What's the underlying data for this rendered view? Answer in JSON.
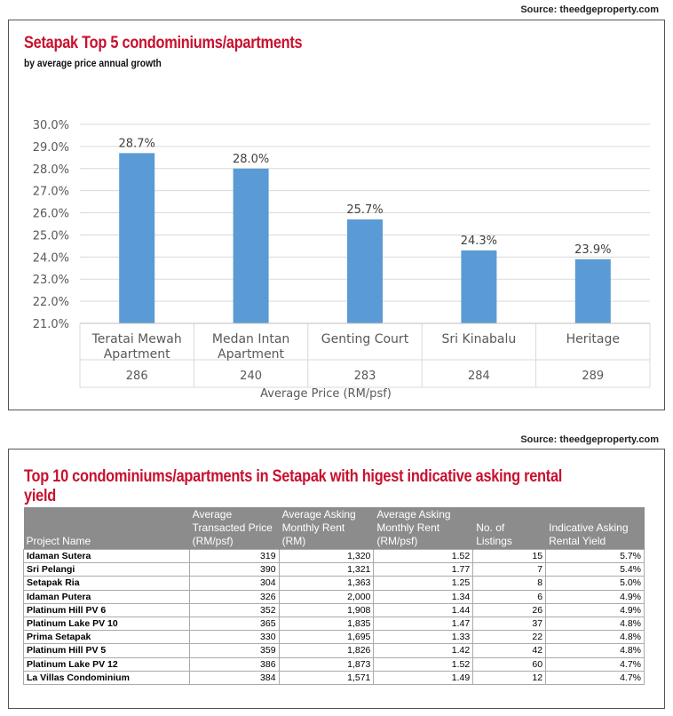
{
  "source_top": "Source: theedgeproperty.com",
  "source_bottom": "Source: theedgeproperty.com",
  "chart_data": {
    "type": "bar",
    "title": "Setapak Top 5 condominiums/apartments",
    "subtitle": "by average price annual growth",
    "categories": [
      {
        "name_lines": [
          "Teratai Mewah",
          "Apartment"
        ],
        "price": "286"
      },
      {
        "name_lines": [
          "Medan Intan",
          "Apartment"
        ],
        "price": "240"
      },
      {
        "name_lines": [
          "Genting Court"
        ],
        "price": "283"
      },
      {
        "name_lines": [
          "Sri Kinabalu"
        ],
        "price": "284"
      },
      {
        "name_lines": [
          "Heritage"
        ],
        "price": "289"
      }
    ],
    "values": [
      28.7,
      28.0,
      25.7,
      24.3,
      23.9
    ],
    "value_labels": [
      "28.7%",
      "28.0%",
      "25.7%",
      "24.3%",
      "23.9%"
    ],
    "xlabel": "Average Price (RM/psf)",
    "ylabel": "",
    "ylim": [
      21.0,
      30.0
    ],
    "yticks": [
      "21.0%",
      "22.0%",
      "23.0%",
      "24.0%",
      "25.0%",
      "26.0%",
      "27.0%",
      "28.0%",
      "29.0%",
      "30.0%"
    ],
    "bar_color": "#5b9bd5",
    "grid": true
  },
  "table": {
    "title": "Top 10 condominiums/apartments in Setapak with higest indicative asking rental yield",
    "headers": [
      [
        "Project Name"
      ],
      [
        "Average",
        "Transacted Price",
        "(RM/psf)"
      ],
      [
        "Average Asking",
        "Monthly Rent",
        "(RM)"
      ],
      [
        "Average Asking",
        "Monthly Rent",
        "(RM/psf)"
      ],
      [
        "No. of",
        "Listings"
      ],
      [
        "Indicative Asking",
        "Rental Yield"
      ]
    ],
    "rows": [
      [
        "Idaman Sutera",
        "319",
        "1,320",
        "1.52",
        "15",
        "5.7%"
      ],
      [
        "Sri Pelangi",
        "390",
        "1,321",
        "1.77",
        "7",
        "5.4%"
      ],
      [
        "Setapak Ria",
        "304",
        "1,363",
        "1.25",
        "8",
        "5.0%"
      ],
      [
        "Idaman Putera",
        "326",
        "2,000",
        "1.34",
        "6",
        "4.9%"
      ],
      [
        "Platinum Hill PV 6",
        "352",
        "1,908",
        "1.44",
        "26",
        "4.9%"
      ],
      [
        "Platinum Lake PV 10",
        "365",
        "1,835",
        "1.47",
        "37",
        "4.8%"
      ],
      [
        "Prima Setapak",
        "330",
        "1,695",
        "1.33",
        "22",
        "4.8%"
      ],
      [
        "Platinum Hill PV 5",
        "359",
        "1,826",
        "1.42",
        "42",
        "4.8%"
      ],
      [
        "Platinum Lake PV 12",
        "386",
        "1,873",
        "1.52",
        "60",
        "4.7%"
      ],
      [
        "La Villas Condominium",
        "384",
        "1,571",
        "1.49",
        "12",
        "4.7%"
      ]
    ]
  },
  "colors": {
    "title_red": "#c8102e",
    "header_gray": "#8c8c8c"
  }
}
